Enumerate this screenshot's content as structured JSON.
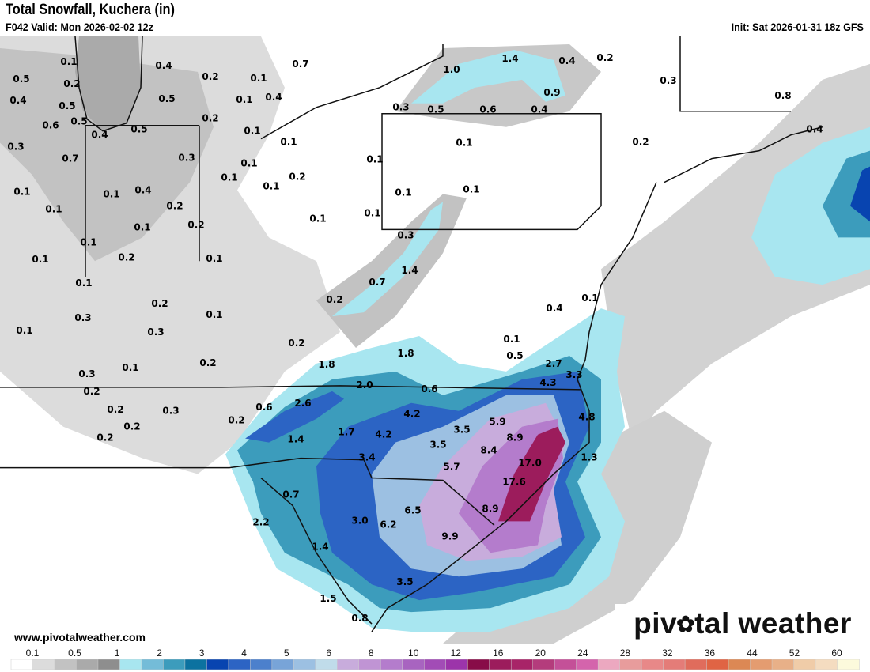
{
  "header": {
    "title": "Total Snowfall, Kuchera (in)",
    "valid": "F042 Valid: Mon 2026-02-02 12z",
    "init": "Init: Sat 2026-01-31 18z GFS"
  },
  "footer": {
    "website": "www.pivotalweather.com",
    "logo_text": "pivotal weather"
  },
  "map": {
    "labels": [
      "0.1",
      "0.5",
      "0.2",
      "0.4",
      "0.5",
      "0.6",
      "0.5",
      "0.4",
      "0.3",
      "0.7",
      "0.1",
      "0.1",
      "0.1",
      "0.1",
      "0.1",
      "0.4",
      "0.1",
      "0.2",
      "0.5",
      "0.3",
      "0.2",
      "0.2",
      "0.4",
      "0.2",
      "0.5",
      "0.2",
      "0.1",
      "0.7",
      "0.1",
      "0.4",
      "0.1",
      "0.1",
      "0.1",
      "0.1",
      "0.2",
      "0.1",
      "0.1",
      "0.1",
      "0.1",
      "0.1",
      "0.3",
      "0.1",
      "0.1",
      "1.0",
      "1.4",
      "0.4",
      "0.2",
      "0.3",
      "0.9",
      "0.3",
      "0.5",
      "0.6",
      "0.4",
      "0.2",
      "0.8",
      "0.4",
      "0.1",
      "0.1",
      "0.3",
      "0.1",
      "0.2",
      "0.3",
      "0.1",
      "0.1",
      "0.2",
      "0.3",
      "0.2",
      "0.2",
      "0.3",
      "0.2",
      "0.2",
      "0.2",
      "0.6",
      "0.2",
      "0.7",
      "1.4",
      "0.2",
      "1.8",
      "1.8",
      "2.0",
      "0.6",
      "0.1",
      "0.5",
      "0.4",
      "0.1",
      "2.7",
      "3.3",
      "4.3",
      "2.6",
      "1.7",
      "1.4",
      "4.2",
      "4.2",
      "3.5",
      "3.5",
      "3.4",
      "5.7",
      "5.9",
      "8.9",
      "8.4",
      "17.0",
      "17.6",
      "8.9",
      "4.8",
      "1.3",
      "0.7",
      "2.2",
      "3.0",
      "6.2",
      "6.5",
      "9.9",
      "1.4",
      "3.5",
      "1.5",
      "0.8"
    ]
  },
  "legend": {
    "ticks": [
      "0.1",
      "0.5",
      "1",
      "2",
      "3",
      "4",
      "5",
      "6",
      "8",
      "10",
      "12",
      "16",
      "20",
      "24",
      "28",
      "32",
      "36",
      "44",
      "52",
      "60"
    ],
    "colors": [
      "#ffffff",
      "#dcdcdc",
      "#c2c2c2",
      "#aaaaaa",
      "#8e8e8e",
      "#a8e6f0",
      "#74bcd8",
      "#3c9cbc",
      "#0c72a0",
      "#0844b0",
      "#2c64c4",
      "#4c80cc",
      "#78a4d8",
      "#9cc0e2",
      "#c0dcea",
      "#c8acdc",
      "#c094d4",
      "#b47ccc",
      "#a864c0",
      "#a24cb6",
      "#9c34aa",
      "#880c48",
      "#9c1c5c",
      "#a82468",
      "#b43c7c",
      "#c45098",
      "#d464ac",
      "#eca8c0",
      "#e89c9c",
      "#e88888",
      "#e47c78",
      "#e06c5c",
      "#e06444",
      "#dc8854",
      "#e49c70",
      "#e8b088",
      "#f0cca8",
      "#f4dcc0",
      "#fcfadc"
    ]
  }
}
